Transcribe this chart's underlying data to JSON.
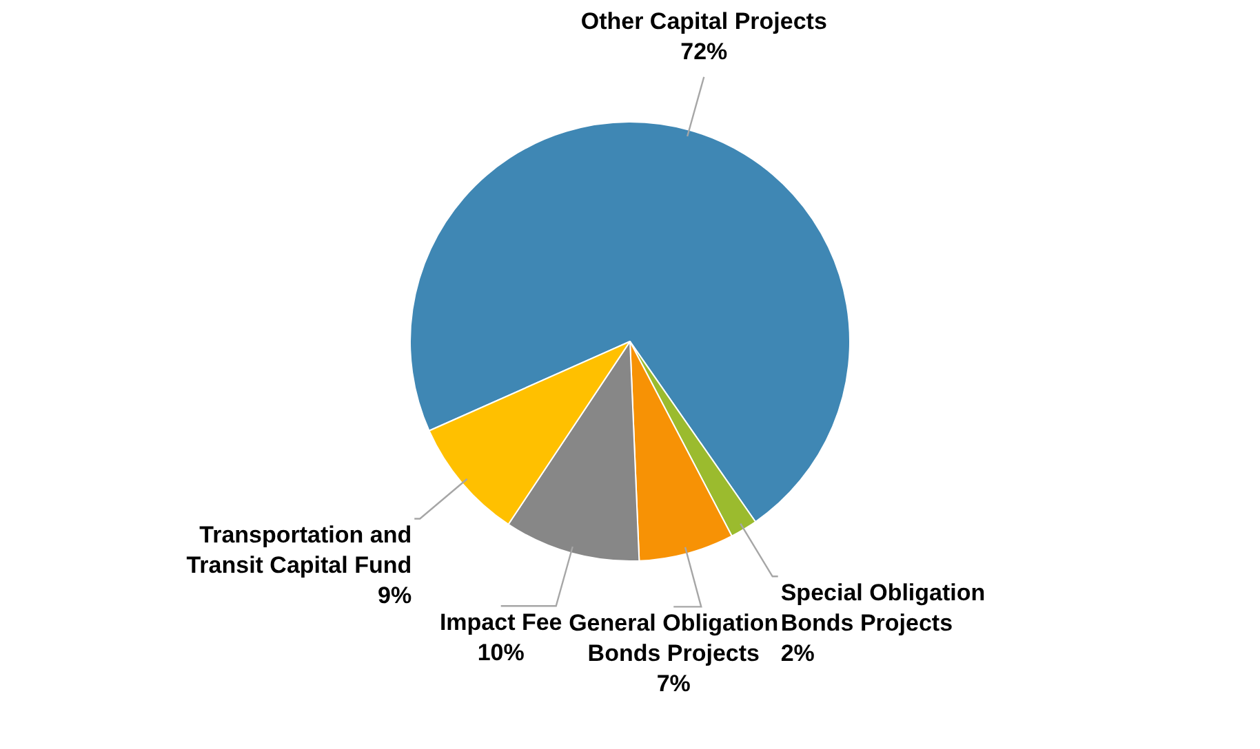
{
  "chart_data": {
    "type": "pie",
    "categories": [
      "Other Capital Projects",
      "Special Obligation Bonds Projects",
      "General Obligation Bonds Projects",
      "Impact Fee",
      "Transportation and Transit Capital Fund"
    ],
    "values": [
      72,
      2,
      7,
      10,
      9
    ],
    "colors": [
      "#3f87b4",
      "#9bbb2e",
      "#f79205",
      "#878787",
      "#ffc000"
    ],
    "value_labels": [
      "72%",
      "2%",
      "7%",
      "10%",
      "9%"
    ],
    "legend": false
  }
}
